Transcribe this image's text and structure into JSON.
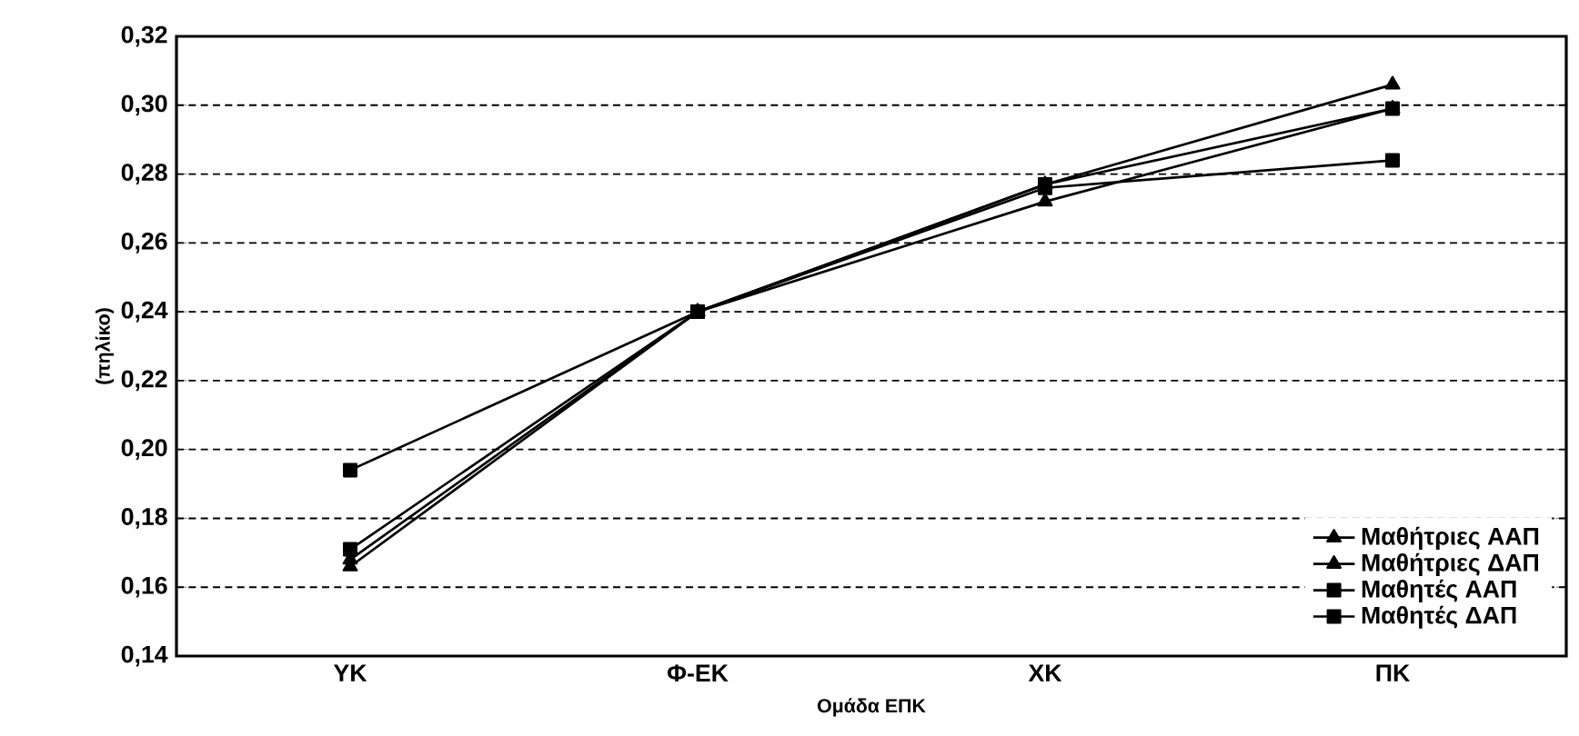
{
  "chart_data": {
    "type": "line",
    "xlabel": "Ομάδα ΕΠΚ",
    "ylabel": "(πηλίκο)",
    "categories": [
      "ΥΚ",
      "Φ-ΕΚ",
      "ΧΚ",
      "ΠΚ"
    ],
    "ylim": [
      0.14,
      0.32
    ],
    "yticks": [
      {
        "value": 0.14,
        "label": "0,14"
      },
      {
        "value": 0.16,
        "label": "0,16"
      },
      {
        "value": 0.18,
        "label": "0,18"
      },
      {
        "value": 0.2,
        "label": "0,20"
      },
      {
        "value": 0.22,
        "label": "0,22"
      },
      {
        "value": 0.24,
        "label": "0,24"
      },
      {
        "value": 0.26,
        "label": "0,26"
      },
      {
        "value": 0.28,
        "label": "0,28"
      },
      {
        "value": 0.3,
        "label": "0,30"
      },
      {
        "value": 0.32,
        "label": "0,32"
      }
    ],
    "grid": "y",
    "legend": "bottom right",
    "line_style": "solid",
    "series": [
      {
        "name": "Μαθήτριες ΑΑΠ",
        "color": "#000000",
        "marker": "triangle",
        "values": [
          0.166,
          0.24,
          0.277,
          0.306
        ]
      },
      {
        "name": "Μαθήτριες ΔΑΠ",
        "color": "#000000",
        "marker": "triangle",
        "values": [
          0.168,
          0.24,
          0.272,
          0.299
        ]
      },
      {
        "name": "Μαθητές ΑΑΠ",
        "color": "#000000",
        "marker": "square",
        "values": [
          0.171,
          0.24,
          0.277,
          0.299
        ]
      },
      {
        "name": "Μαθητές ΔΑΠ",
        "color": "#000000",
        "marker": "square",
        "values": [
          0.194,
          0.24,
          0.276,
          0.284
        ]
      }
    ]
  }
}
